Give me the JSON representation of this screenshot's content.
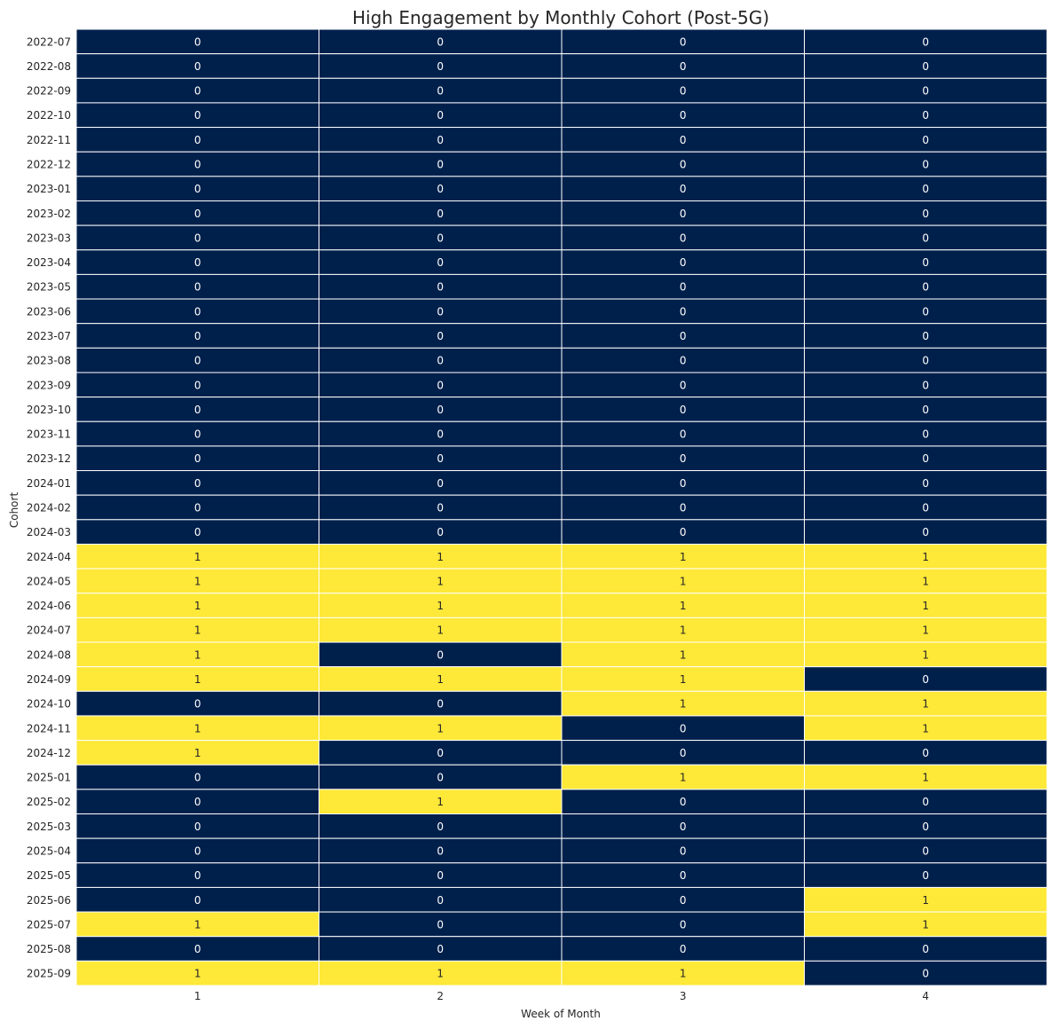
{
  "chart_data": {
    "type": "heatmap",
    "title": "High Engagement by Monthly Cohort (Post-5G)",
    "xlabel": "Week of Month",
    "ylabel": "Cohort",
    "x_categories": [
      "1",
      "2",
      "3",
      "4"
    ],
    "y_categories": [
      "2022-07",
      "2022-08",
      "2022-09",
      "2022-10",
      "2022-11",
      "2022-12",
      "2023-01",
      "2023-02",
      "2023-03",
      "2023-04",
      "2023-05",
      "2023-06",
      "2023-07",
      "2023-08",
      "2023-09",
      "2023-10",
      "2023-11",
      "2023-12",
      "2024-01",
      "2024-02",
      "2024-03",
      "2024-04",
      "2024-05",
      "2024-06",
      "2024-07",
      "2024-08",
      "2024-09",
      "2024-10",
      "2024-11",
      "2024-12",
      "2025-01",
      "2025-02",
      "2025-03",
      "2025-04",
      "2025-05",
      "2025-06",
      "2025-07",
      "2025-08",
      "2025-09"
    ],
    "values": [
      [
        0,
        0,
        0,
        0
      ],
      [
        0,
        0,
        0,
        0
      ],
      [
        0,
        0,
        0,
        0
      ],
      [
        0,
        0,
        0,
        0
      ],
      [
        0,
        0,
        0,
        0
      ],
      [
        0,
        0,
        0,
        0
      ],
      [
        0,
        0,
        0,
        0
      ],
      [
        0,
        0,
        0,
        0
      ],
      [
        0,
        0,
        0,
        0
      ],
      [
        0,
        0,
        0,
        0
      ],
      [
        0,
        0,
        0,
        0
      ],
      [
        0,
        0,
        0,
        0
      ],
      [
        0,
        0,
        0,
        0
      ],
      [
        0,
        0,
        0,
        0
      ],
      [
        0,
        0,
        0,
        0
      ],
      [
        0,
        0,
        0,
        0
      ],
      [
        0,
        0,
        0,
        0
      ],
      [
        0,
        0,
        0,
        0
      ],
      [
        0,
        0,
        0,
        0
      ],
      [
        0,
        0,
        0,
        0
      ],
      [
        0,
        0,
        0,
        0
      ],
      [
        1,
        1,
        1,
        1
      ],
      [
        1,
        1,
        1,
        1
      ],
      [
        1,
        1,
        1,
        1
      ],
      [
        1,
        1,
        1,
        1
      ],
      [
        1,
        0,
        1,
        1
      ],
      [
        1,
        1,
        1,
        0
      ],
      [
        0,
        0,
        1,
        1
      ],
      [
        1,
        1,
        0,
        1
      ],
      [
        1,
        0,
        0,
        0
      ],
      [
        0,
        0,
        1,
        1
      ],
      [
        0,
        1,
        0,
        0
      ],
      [
        0,
        0,
        0,
        0
      ],
      [
        0,
        0,
        0,
        0
      ],
      [
        0,
        0,
        0,
        0
      ],
      [
        0,
        0,
        0,
        1
      ],
      [
        1,
        0,
        0,
        1
      ],
      [
        0,
        0,
        0,
        0
      ],
      [
        1,
        1,
        1,
        0
      ]
    ],
    "value_range": [
      0,
      1
    ],
    "colormap": {
      "low": "#00204c",
      "high": "#fee838"
    },
    "annotation_colors": {
      "on_low": "#ffffff",
      "on_high": "#262626"
    },
    "colorbar": false,
    "grid": true,
    "cell_border_color": "#ffffff"
  }
}
